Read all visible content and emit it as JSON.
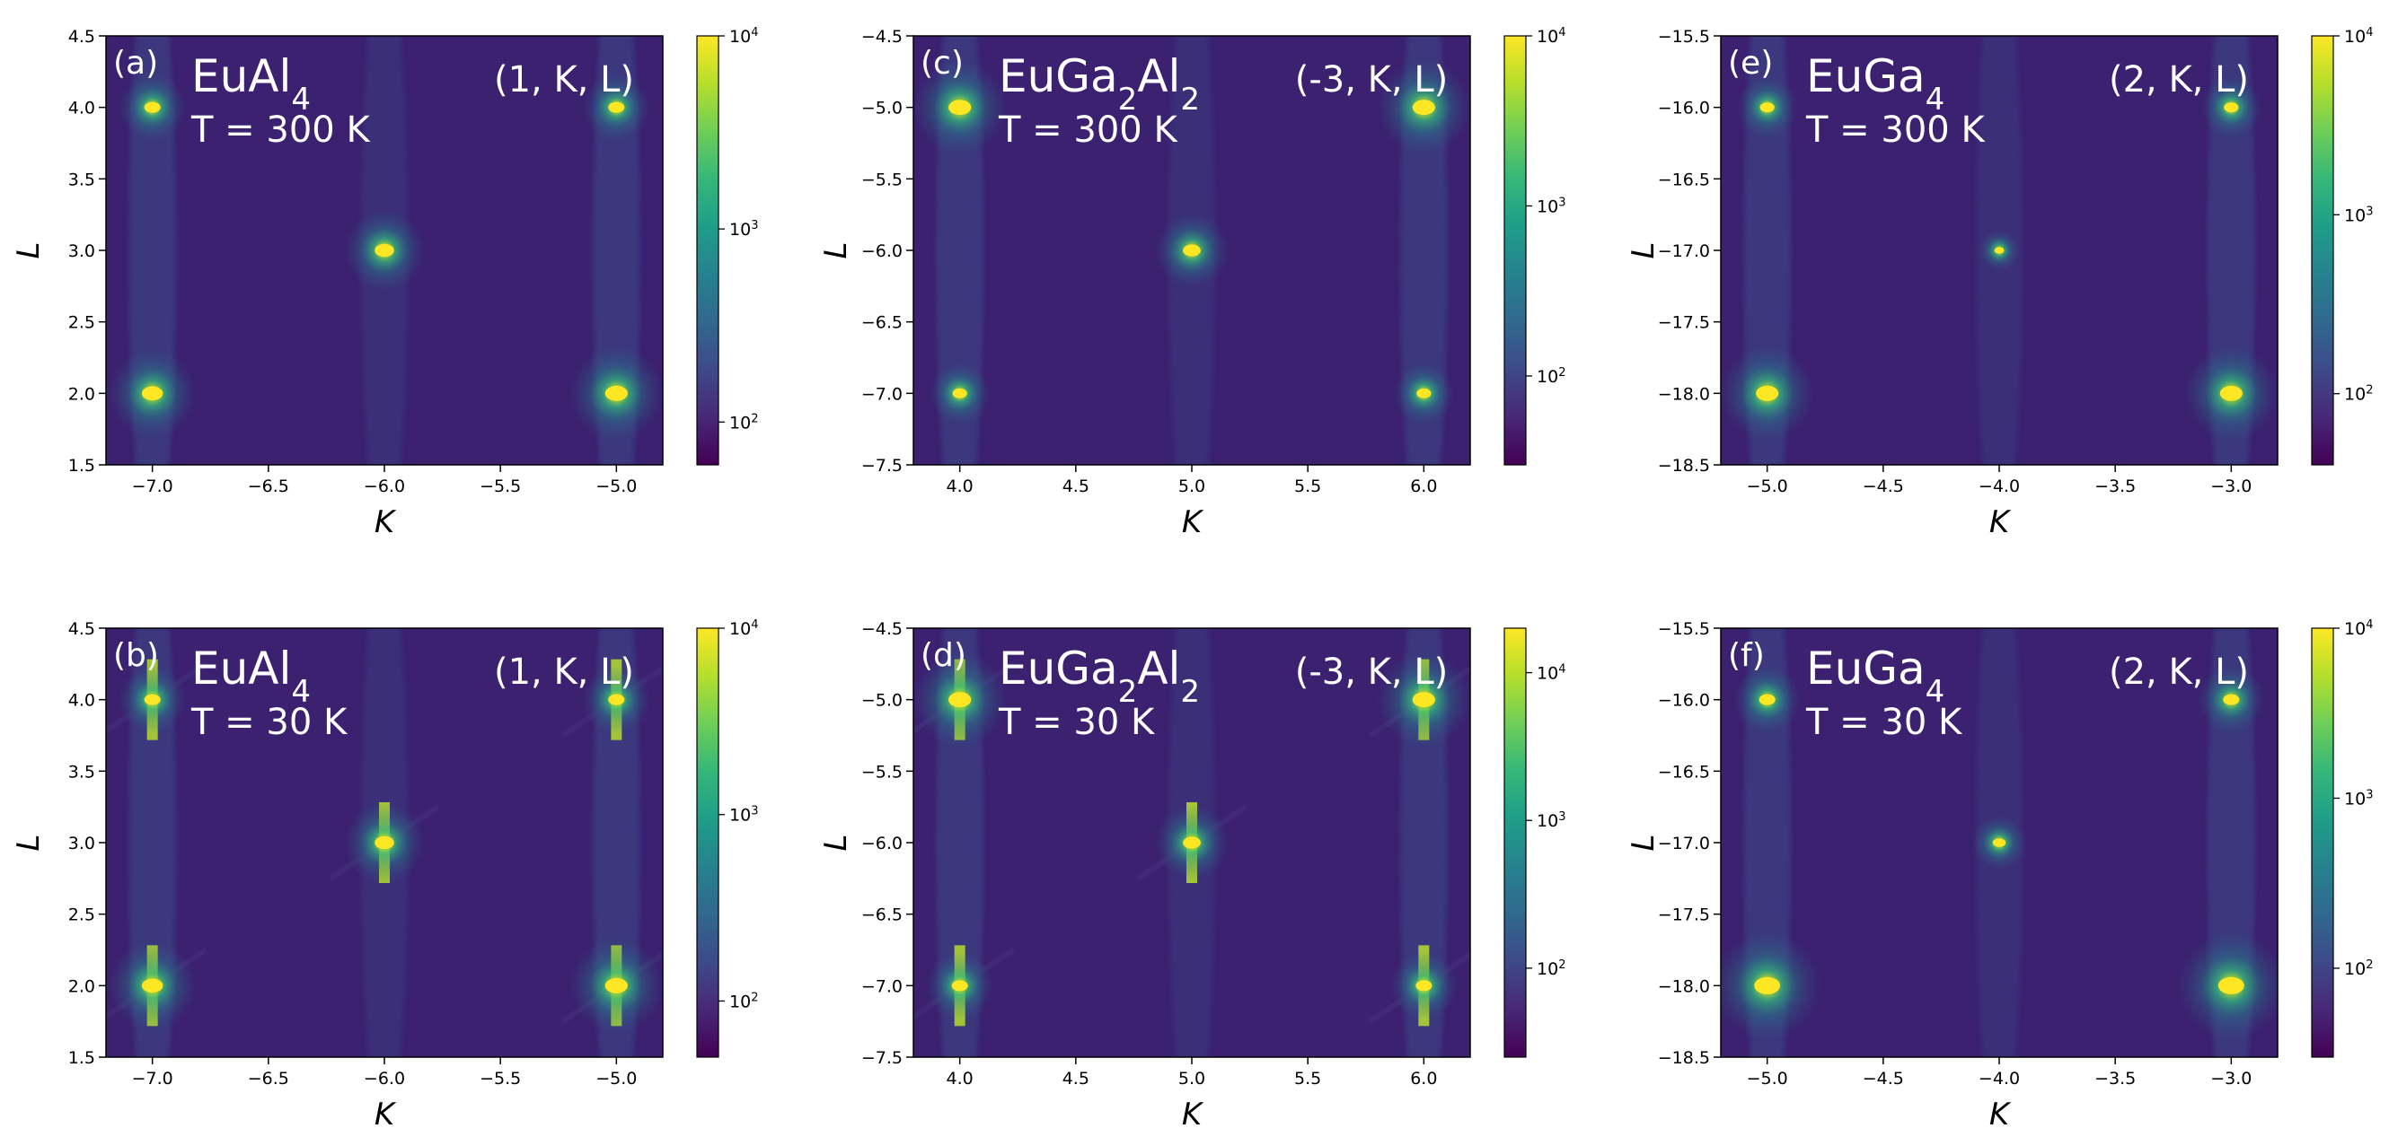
{
  "figure": {
    "description_id": "xray-maps"
  },
  "colorscale": {
    "stops": [
      "#440154",
      "#482878",
      "#3e4a89",
      "#31688e",
      "#26828e",
      "#1f9e89",
      "#35b779",
      "#6ece58",
      "#b5de2b",
      "#fde725"
    ]
  },
  "chart_data": [
    {
      "type": "heatmap",
      "panel": "(a)",
      "compound": "EuAl4",
      "compound_html": "EuAl<tspan baseline-shift='sub' font-size='70%'>4</tspan>",
      "plane": "(1, K, L)",
      "temperature": "T = 300 K",
      "xlabel": "K",
      "ylabel": "L",
      "xlim": [
        -7.2,
        -4.8
      ],
      "ylim": [
        1.5,
        4.5
      ],
      "xticks": [
        "-7.0",
        "-6.5",
        "-6.0",
        "-5.5",
        "-5.0"
      ],
      "xtick_values": [
        -7.0,
        -6.5,
        -6.0,
        -5.5,
        -5.0
      ],
      "yticks": [
        "1.5",
        "2.0",
        "2.5",
        "3.0",
        "3.5",
        "4.0",
        "4.5"
      ],
      "ytick_values": [
        1.5,
        2.0,
        2.5,
        3.0,
        3.5,
        4.0,
        4.5
      ],
      "colorbar": {
        "scale": "log",
        "range": [
          60,
          10000
        ],
        "ticks": [
          {
            "value": 100,
            "label": "10^2"
          },
          {
            "value": 1000,
            "label": "10^3"
          },
          {
            "value": 10000,
            "label": "10^4"
          }
        ]
      },
      "peaks": [
        {
          "K": -7.0,
          "L": 4.0,
          "size": 1.0
        },
        {
          "K": -5.0,
          "L": 4.0,
          "size": 1.0
        },
        {
          "K": -6.0,
          "L": 3.0,
          "size": 1.2
        },
        {
          "K": -7.0,
          "L": 2.0,
          "size": 1.3
        },
        {
          "K": -5.0,
          "L": 2.0,
          "size": 1.4
        }
      ],
      "streaks": false
    },
    {
      "type": "heatmap",
      "panel": "(b)",
      "compound": "EuAl4",
      "plane": "(1, K, L)",
      "temperature": "T = 30 K",
      "xlabel": "K",
      "ylabel": "L",
      "xlim": [
        -7.2,
        -4.8
      ],
      "ylim": [
        1.5,
        4.5
      ],
      "xticks": [
        "-7.0",
        "-6.5",
        "-6.0",
        "-5.5",
        "-5.0"
      ],
      "xtick_values": [
        -7.0,
        -6.5,
        -6.0,
        -5.5,
        -5.0
      ],
      "yticks": [
        "1.5",
        "2.0",
        "2.5",
        "3.0",
        "3.5",
        "4.0",
        "4.5"
      ],
      "ytick_values": [
        1.5,
        2.0,
        2.5,
        3.0,
        3.5,
        4.0,
        4.5
      ],
      "colorbar": {
        "scale": "log",
        "range": [
          50,
          10000
        ],
        "ticks": [
          {
            "value": 100,
            "label": "10^2"
          },
          {
            "value": 1000,
            "label": "10^3"
          },
          {
            "value": 10000,
            "label": "10^4"
          }
        ]
      },
      "peaks": [
        {
          "K": -7.0,
          "L": 4.0,
          "size": 1.0
        },
        {
          "K": -5.0,
          "L": 4.0,
          "size": 1.0
        },
        {
          "K": -6.0,
          "L": 3.0,
          "size": 1.2
        },
        {
          "K": -7.0,
          "L": 2.0,
          "size": 1.3
        },
        {
          "K": -5.0,
          "L": 2.0,
          "size": 1.4
        }
      ],
      "streaks": true
    },
    {
      "type": "heatmap",
      "panel": "(c)",
      "compound": "EuGa2Al2",
      "plane": "(-3, K, L)",
      "temperature": "T = 300 K",
      "xlabel": "K",
      "ylabel": "L",
      "xlim": [
        3.8,
        6.2
      ],
      "ylim": [
        -7.5,
        -4.5
      ],
      "xticks": [
        "4.0",
        "4.5",
        "5.0",
        "5.5",
        "6.0"
      ],
      "xtick_values": [
        4.0,
        4.5,
        5.0,
        5.5,
        6.0
      ],
      "yticks": [
        "-7.5",
        "-7.0",
        "-6.5",
        "-6.0",
        "-5.5",
        "-5.0",
        "-4.5"
      ],
      "ytick_values": [
        -7.5,
        -7.0,
        -6.5,
        -6.0,
        -5.5,
        -5.0,
        -4.5
      ],
      "colorbar": {
        "scale": "log",
        "range": [
          30,
          10000
        ],
        "ticks": [
          {
            "value": 100,
            "label": "10^2"
          },
          {
            "value": 1000,
            "label": "10^3"
          },
          {
            "value": 10000,
            "label": "10^4"
          }
        ]
      },
      "peaks": [
        {
          "K": 4.0,
          "L": -5.0,
          "size": 1.4
        },
        {
          "K": 6.0,
          "L": -5.0,
          "size": 1.4
        },
        {
          "K": 5.0,
          "L": -6.0,
          "size": 1.1
        },
        {
          "K": 4.0,
          "L": -7.0,
          "size": 0.9
        },
        {
          "K": 6.0,
          "L": -7.0,
          "size": 0.9
        }
      ],
      "streaks": false
    },
    {
      "type": "heatmap",
      "panel": "(d)",
      "compound": "EuGa2Al2",
      "plane": "(-3, K, L)",
      "temperature": "T = 30 K",
      "xlabel": "K",
      "ylabel": "L",
      "xlim": [
        3.8,
        6.2
      ],
      "ylim": [
        -7.5,
        -4.5
      ],
      "xticks": [
        "4.0",
        "4.5",
        "5.0",
        "5.5",
        "6.0"
      ],
      "xtick_values": [
        4.0,
        4.5,
        5.0,
        5.5,
        6.0
      ],
      "yticks": [
        "-7.5",
        "-7.0",
        "-6.5",
        "-6.0",
        "-5.5",
        "-5.0",
        "-4.5"
      ],
      "ytick_values": [
        -7.5,
        -7.0,
        -6.5,
        -6.0,
        -5.5,
        -5.0,
        -4.5
      ],
      "colorbar": {
        "scale": "log",
        "range": [
          25,
          20000
        ],
        "ticks": [
          {
            "value": 100,
            "label": "10^2"
          },
          {
            "value": 1000,
            "label": "10^3"
          },
          {
            "value": 10000,
            "label": "10^4"
          }
        ]
      },
      "peaks": [
        {
          "K": 4.0,
          "L": -5.0,
          "size": 1.4
        },
        {
          "K": 6.0,
          "L": -5.0,
          "size": 1.4
        },
        {
          "K": 5.0,
          "L": -6.0,
          "size": 1.1
        },
        {
          "K": 4.0,
          "L": -7.0,
          "size": 1.0
        },
        {
          "K": 6.0,
          "L": -7.0,
          "size": 1.0
        }
      ],
      "streaks": true
    },
    {
      "type": "heatmap",
      "panel": "(e)",
      "compound": "EuGa4",
      "plane": "(2, K, L)",
      "temperature": "T = 300 K",
      "xlabel": "K",
      "ylabel": "L",
      "xlim": [
        -5.2,
        -2.8
      ],
      "ylim": [
        -18.5,
        -15.5
      ],
      "xticks": [
        "-5.0",
        "-4.5",
        "-4.0",
        "-3.5",
        "-3.0"
      ],
      "xtick_values": [
        -5.0,
        -4.5,
        -4.0,
        -3.5,
        -3.0
      ],
      "yticks": [
        "-18.5",
        "-18.0",
        "-17.5",
        "-17.0",
        "-16.5",
        "-16.0",
        "-15.5"
      ],
      "ytick_values": [
        -18.5,
        -18.0,
        -17.5,
        -17.0,
        -16.5,
        -16.0,
        -15.5
      ],
      "colorbar": {
        "scale": "log",
        "range": [
          40,
          10000
        ],
        "ticks": [
          {
            "value": 100,
            "label": "10^2"
          },
          {
            "value": 1000,
            "label": "10^3"
          },
          {
            "value": 10000,
            "label": "10^4"
          }
        ]
      },
      "peaks": [
        {
          "K": -5.0,
          "L": -16.0,
          "size": 0.9
        },
        {
          "K": -3.0,
          "L": -16.0,
          "size": 0.9
        },
        {
          "K": -4.0,
          "L": -17.0,
          "size": 0.6
        },
        {
          "K": -5.0,
          "L": -18.0,
          "size": 1.4
        },
        {
          "K": -3.0,
          "L": -18.0,
          "size": 1.4
        }
      ],
      "streaks": false
    },
    {
      "type": "heatmap",
      "panel": "(f)",
      "compound": "EuGa4",
      "plane": "(2, K, L)",
      "temperature": "T = 30 K",
      "xlabel": "K",
      "ylabel": "L",
      "xlim": [
        -5.2,
        -2.8
      ],
      "ylim": [
        -18.5,
        -15.5
      ],
      "xticks": [
        "-5.0",
        "-4.5",
        "-4.0",
        "-3.5",
        "-3.0"
      ],
      "xtick_values": [
        -5.0,
        -4.5,
        -4.0,
        -3.5,
        -3.0
      ],
      "yticks": [
        "-18.5",
        "-18.0",
        "-17.5",
        "-17.0",
        "-16.5",
        "-16.0",
        "-15.5"
      ],
      "ytick_values": [
        -18.5,
        -18.0,
        -17.5,
        -17.0,
        -16.5,
        -16.0,
        -15.5
      ],
      "colorbar": {
        "scale": "log",
        "range": [
          30,
          10000
        ],
        "ticks": [
          {
            "value": 100,
            "label": "10^2"
          },
          {
            "value": 1000,
            "label": "10^3"
          },
          {
            "value": 10000,
            "label": "10^4"
          }
        ]
      },
      "peaks": [
        {
          "K": -5.0,
          "L": -16.0,
          "size": 1.0
        },
        {
          "K": -3.0,
          "L": -16.0,
          "size": 1.0
        },
        {
          "K": -4.0,
          "L": -17.0,
          "size": 0.8
        },
        {
          "K": -5.0,
          "L": -18.0,
          "size": 1.6
        },
        {
          "K": -3.0,
          "L": -18.0,
          "size": 1.6
        }
      ],
      "streaks": false
    }
  ]
}
